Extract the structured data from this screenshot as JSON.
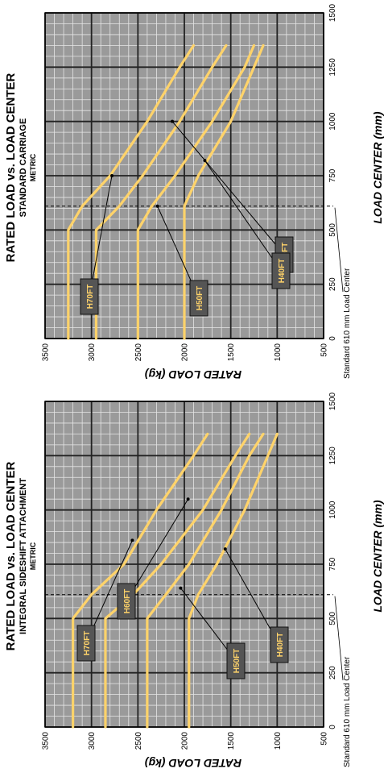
{
  "colors": {
    "plot_background": "#9a9a9a",
    "minor_grid": "#e6e6e6",
    "major_grid": "#222222",
    "curve": "#ffd36a",
    "label_box": "#555555",
    "label_text": "#ffd36a",
    "reference_line": "#000000"
  },
  "chart_data": [
    {
      "type": "line",
      "title": "RATED LOAD vs. LOAD CENTER",
      "subtitle": "STANDARD CARRIAGE",
      "units_note": "METRIC",
      "xlabel": "LOAD CENTER (mm)",
      "ylabel": "RATED LOAD (kg)",
      "xlim": [
        0,
        1500
      ],
      "ylim": [
        500,
        3500
      ],
      "x_ticks": [
        0,
        250,
        500,
        750,
        1000,
        1250,
        1500
      ],
      "y_ticks": [
        3500,
        3000,
        2500,
        2000,
        1500,
        1000,
        500
      ],
      "grid": true,
      "reference_line": {
        "x": 610,
        "label": "Standard 610 mm Load Center"
      },
      "series": [
        {
          "name": "H70FT",
          "x": [
            0,
            500,
            610,
            750,
            1000,
            1250,
            1350
          ],
          "y": [
            3250,
            3250,
            3100,
            2800,
            2400,
            2050,
            1900
          ]
        },
        {
          "name": "H60FT",
          "x": [
            0,
            500,
            610,
            750,
            1000,
            1250,
            1350
          ],
          "y": [
            2950,
            2950,
            2700,
            2450,
            2050,
            1700,
            1550
          ]
        },
        {
          "name": "H50FT",
          "x": [
            0,
            500,
            610,
            750,
            1000,
            1250,
            1350
          ],
          "y": [
            2500,
            2500,
            2350,
            2100,
            1700,
            1350,
            1250
          ]
        },
        {
          "name": "H40FT",
          "x": [
            0,
            500,
            610,
            750,
            1000,
            1250,
            1350
          ],
          "y": [
            2000,
            2000,
            2000,
            1850,
            1500,
            1250,
            1150
          ]
        }
      ]
    },
    {
      "type": "line",
      "title": "RATED LOAD vs. LOAD CENTER",
      "subtitle": "INTEGRAL SIDESHIFT ATTACHMENT",
      "units_note": "METRIC",
      "xlabel": "LOAD CENTER (mm)",
      "ylabel": "RATED LOAD (kg)",
      "xlim": [
        0,
        1500
      ],
      "ylim": [
        500,
        3500
      ],
      "x_ticks": [
        0,
        250,
        500,
        750,
        1000,
        1250,
        1500
      ],
      "y_ticks": [
        3500,
        3000,
        2500,
        2000,
        1500,
        1000,
        500
      ],
      "grid": true,
      "reference_line": {
        "x": 610,
        "label": "Standard 610 mm Load Center"
      },
      "series": [
        {
          "name": "H70FT",
          "x": [
            0,
            500,
            610,
            750,
            1000,
            1250,
            1350
          ],
          "y": [
            3200,
            3200,
            3000,
            2650,
            2300,
            1900,
            1750
          ]
        },
        {
          "name": "H60FT",
          "x": [
            0,
            500,
            610,
            750,
            1000,
            1250,
            1350
          ],
          "y": [
            2850,
            2850,
            2550,
            2250,
            1800,
            1450,
            1300
          ]
        },
        {
          "name": "H50FT",
          "x": [
            0,
            500,
            610,
            750,
            1000,
            1250,
            1350
          ],
          "y": [
            2400,
            2400,
            2200,
            1950,
            1600,
            1300,
            1150
          ]
        },
        {
          "name": "H40FT",
          "x": [
            0,
            500,
            610,
            750,
            1000,
            1250,
            1350
          ],
          "y": [
            1950,
            1950,
            1850,
            1650,
            1350,
            1100,
            1000
          ]
        }
      ]
    }
  ]
}
